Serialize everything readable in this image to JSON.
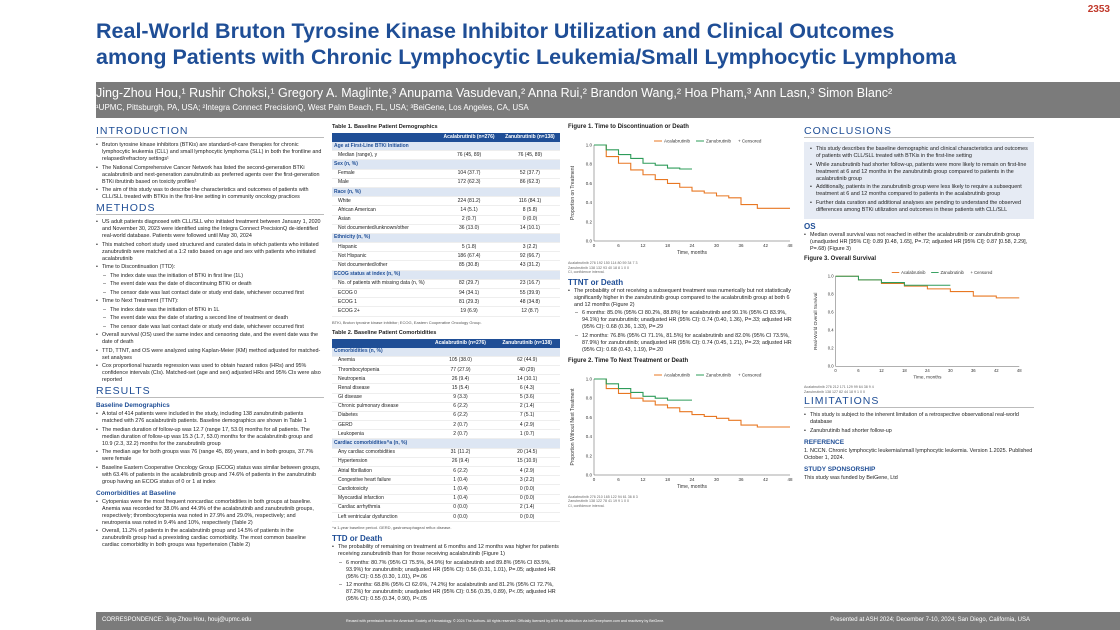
{
  "poster_number": "2353",
  "title_line1": "Real-World Bruton Tyrosine Kinase Inhibitor Utilization and Clinical Outcomes",
  "title_line2": "among Patients with Chronic Lymphocytic Leukemia/Small Lymphocytic Lymphoma",
  "authors": "Jing-Zhou Hou,¹ Rushir Choksi,¹ Gregory A. Maglinte,³ Anupama Vasudevan,² Anna Rui,² Brandon Wang,² Hoa Pham,³ Ann Lasn,³ Simon Blanc²",
  "affiliations": "¹UPMC, Pittsburgh, PA, USA; ²Integra Connect PrecisionQ, West Palm Beach, FL, USA; ³BeiGene, Los Angeles, CA, USA",
  "sections": {
    "introduction": "INTRODUCTION",
    "methods": "METHODS",
    "results": "RESULTS",
    "conclusions": "CONCLUSIONS",
    "limitations": "LIMITATIONS",
    "baseline_demographics": "Baseline Demographics",
    "comorbidities": "Comorbidities at Baseline",
    "ttd": "TTD or Death",
    "ttnt": "TTNT or Death",
    "os": "OS",
    "reference": "REFERENCE",
    "sponsorship": "STUDY SPONSORSHIP"
  },
  "intro_bullets": [
    "Bruton tyrosine kinase inhibitors (BTKis) are standard-of-care therapies for chronic lymphocytic leukemia (CLL) and small lymphocytic lymphoma (SLL) in both the frontline and relapsed/refractory settings¹",
    "The National Comprehensive Cancer Network has listed the second-generation BTKi acalabrutinib and next-generation zanubrutinib as preferred agents over the first-generation BTKi ibrutinib based on toxicity profiles¹",
    "The aim of this study was to describe the characteristics and outcomes of patients with CLL/SLL treated with BTKis in the first-line setting in community oncology practices"
  ],
  "methods_bullets": [
    {
      "t": "US adult patients diagnosed with CLL/SLL who initiated treatment between January 1, 2020 and November 30, 2023 were identified using the Integra Connect PrecisionQ de-identified real-world database. Patients were followed until May 30, 2024",
      "sub": false
    },
    {
      "t": "This matched cohort study used structured and curated data in which patients who initiated zanubrutinib were matched at a 1:2 ratio based on age and sex with patients who initiated acalabrutinib",
      "sub": false
    },
    {
      "t": "Time to Discontinuation (TTD):",
      "sub": false
    },
    {
      "t": "The index date was the initiation of BTKi in first line (1L)",
      "sub": true
    },
    {
      "t": "The event date was the date of discontinuing BTKi or death",
      "sub": true
    },
    {
      "t": "The censor date was last contact date or study end date, whichever occurred first",
      "sub": true
    },
    {
      "t": "Time to Next Treatment (TTNT):",
      "sub": false
    },
    {
      "t": "The index date was the initiation of BTKi in 1L",
      "sub": true
    },
    {
      "t": "The event date was the date of starting a second line of treatment or death",
      "sub": true
    },
    {
      "t": "The censor date was last contact date or study end date, whichever occurred first",
      "sub": true
    },
    {
      "t": "Overall survival (OS) used the same index and censoring date, and the event date was the date of death",
      "sub": false
    },
    {
      "t": "TTD, TTNT, and OS were analyzed using Kaplan-Meier (KM) method adjusted for matched-set analyses",
      "sub": false
    },
    {
      "t": "Cox proportional hazards regression was used to obtain hazard ratios (HRs) and 95% confidence intervals (CIs). Matched-set (age and sex) adjusted HRs and 95% CIs were also reported",
      "sub": false
    }
  ],
  "baseline_bullets": [
    "A total of 414 patients were included in the study, including 138 zanubrutinib patients matched with 276 acalabrutinib patients. Baseline demographics are shown in Table 1",
    "The median duration of follow-up was 12.7 (range 17, 53.0) months for all patients. The median duration of follow-up was 15.3 (1.7, 53.0) months for the acalabrutinib group and 10.9 (2.3, 32.2) months for the zanubrutinib group",
    "The median age for both groups was 76 (range 45, 89) years, and in both groups, 37.7% were female",
    "Baseline Eastern Cooperative Oncology Group (ECOG) status was similar between groups, with 63.4% of patients in the acalabrutinib group and 74.6% of patients in the zanubrutinib group having an ECOG status of 0 or 1 at index"
  ],
  "comorb_bullets": [
    "Cytopenias were the most frequent noncardiac comorbidities in both groups at baseline. Anemia was recorded for 38.0% and 44.9% of the acalabrutinib and zanubrutinib groups, respectively; thrombocytopenia was noted in 27.9% and 29.0%, respectively; and neutropenia was noted in 9.4% and 10%, respectively (Table 2)",
    "Overall, 11.2% of patients in the acalabrutinib group and 14.5% of patients in the zanubrutinib group had a preexisting cardiac comorbidity. The most common baseline cardiac comorbidity in both groups was hypertension (Table 2)"
  ],
  "table1": {
    "title": "Table 1. Baseline Patient Demographics",
    "headers": [
      "",
      "Acalabrutinib (n=276)",
      "Zanubrutinib (n=138)"
    ],
    "rows": [
      {
        "c": [
          "Age at First-Line BTKi Initiation",
          "",
          ""
        ],
        "k": "cat"
      },
      {
        "c": [
          "Median (range), y",
          "76 (45, 89)",
          "76 (45, 89)"
        ],
        "k": "ind"
      },
      {
        "c": [
          "Sex (n, %)",
          "",
          ""
        ],
        "k": "cat"
      },
      {
        "c": [
          "Female",
          "104 (37.7)",
          "52 (37.7)"
        ],
        "k": "ind"
      },
      {
        "c": [
          "Male",
          "172 (62.3)",
          "86 (62.3)"
        ],
        "k": "ind"
      },
      {
        "c": [
          "Race (n, %)",
          "",
          ""
        ],
        "k": "cat"
      },
      {
        "c": [
          "White",
          "224 (81.2)",
          "116 (84.1)"
        ],
        "k": "ind"
      },
      {
        "c": [
          "African American",
          "14 (5.1)",
          "8 (5.8)"
        ],
        "k": "ind"
      },
      {
        "c": [
          "Asian",
          "2 (0.7)",
          "0 (0.0)"
        ],
        "k": "ind"
      },
      {
        "c": [
          "Not documented/unknown/other",
          "36 (13.0)",
          "14 (10.1)"
        ],
        "k": "ind"
      },
      {
        "c": [
          "Ethnicity (n, %)",
          "",
          ""
        ],
        "k": "cat"
      },
      {
        "c": [
          "Hispanic",
          "5 (1.8)",
          "3 (2.2)"
        ],
        "k": "ind"
      },
      {
        "c": [
          "Not Hispanic",
          "186 (67.4)",
          "92 (66.7)"
        ],
        "k": "ind"
      },
      {
        "c": [
          "Not documented/other",
          "85 (30.8)",
          "43 (31.2)"
        ],
        "k": "ind"
      },
      {
        "c": [
          "ECOG status at index (n, %)",
          "",
          ""
        ],
        "k": "cat"
      },
      {
        "c": [
          "No. of patients with missing data (n, %)",
          "82 (29.7)",
          "23 (16.7)"
        ],
        "k": "ind"
      },
      {
        "c": [
          "ECOG 0",
          "94 (34.1)",
          "55 (39.9)"
        ],
        "k": "ind"
      },
      {
        "c": [
          "ECOG 1",
          "81 (29.3)",
          "48 (34.8)"
        ],
        "k": "ind"
      },
      {
        "c": [
          "ECOG 2+",
          "19 (6.9)",
          "12 (8.7)"
        ],
        "k": "ind"
      }
    ],
    "footnote": "BTKi, Bruton tyrosine kinase inhibitor; ECOG, Eastern Cooperative Oncology Group."
  },
  "table2": {
    "title": "Table 2. Baseline Patient Comorbidities",
    "headers": [
      "",
      "Acalabrutinib (n=276)",
      "Zanubrutinib (n=138)"
    ],
    "rows": [
      {
        "c": [
          "Comorbidities (n, %)",
          "",
          ""
        ],
        "k": "cat"
      },
      {
        "c": [
          "Anemia",
          "105 (38.0)",
          "62 (44.9)"
        ],
        "k": "ind"
      },
      {
        "c": [
          "Thrombocytopenia",
          "77 (27.9)",
          "40 (29)"
        ],
        "k": "ind"
      },
      {
        "c": [
          "Neutropenia",
          "26 (9.4)",
          "14 (10.1)"
        ],
        "k": "ind"
      },
      {
        "c": [
          "Renal disease",
          "15 (5.4)",
          "6 (4.3)"
        ],
        "k": "ind"
      },
      {
        "c": [
          "GI disease",
          "9 (3.3)",
          "5 (3.6)"
        ],
        "k": "ind"
      },
      {
        "c": [
          "Chronic pulmonary disease",
          "6 (2.2)",
          "2 (1.4)"
        ],
        "k": "ind"
      },
      {
        "c": [
          "Diabetes",
          "6 (2.2)",
          "7 (5.1)"
        ],
        "k": "ind"
      },
      {
        "c": [
          "GERD",
          "2 (0.7)",
          "4 (2.9)"
        ],
        "k": "ind"
      },
      {
        "c": [
          "Leukopenia",
          "2 (0.7)",
          "1 (0.7)"
        ],
        "k": "ind"
      },
      {
        "c": [
          "Cardiac comorbidities^a (n, %)",
          "",
          ""
        ],
        "k": "cat"
      },
      {
        "c": [
          "Any cardiac comorbidities",
          "31 (11.2)",
          "20 (14.5)"
        ],
        "k": "ind"
      },
      {
        "c": [
          "Hypertension",
          "26 (9.4)",
          "15 (10.9)"
        ],
        "k": "ind"
      },
      {
        "c": [
          "Atrial fibrillation",
          "6 (2.2)",
          "4 (2.9)"
        ],
        "k": "ind"
      },
      {
        "c": [
          "Congestive heart failure",
          "1 (0.4)",
          "3 (2.2)"
        ],
        "k": "ind"
      },
      {
        "c": [
          "Cardiotoxicity",
          "1 (0.4)",
          "0 (0.0)"
        ],
        "k": "ind"
      },
      {
        "c": [
          "Myocardial infarction",
          "1 (0.4)",
          "0 (0.0)"
        ],
        "k": "ind"
      },
      {
        "c": [
          "Cardiac arrhythmia",
          "0 (0.0)",
          "2 (1.4)"
        ],
        "k": "ind"
      },
      {
        "c": [
          "Left ventricular dysfunction",
          "0 (0.0)",
          "0 (0.0)"
        ],
        "k": "ind"
      }
    ],
    "footnote": "^a 1-year baseline period. GERD, gastroesophageal reflux disease."
  },
  "ttd_intro": "The probability of remaining on treatment at 6 months and 12 months was higher for patients receiving zanubrutinib than for those receiving acalabrutinib (Figure 1)",
  "ttd_sub": [
    "6 months: 80.7% (95% CI 75.5%, 84.9%) for acalabrutinib and 89.8% (95% CI 83.5%, 93.9%) for zanubrutinib; unadjusted HR (95% CI): 0.56 (0.31, 1.01), P=.05; adjusted HR (95% CI): 0.55 (0.30, 1.01), P=.06",
    "12 months: 68.8% (95% CI 62.6%, 74.2%) for acalabrutinib and 81.2% (95% CI 72.7%, 87.2%) for zanubrutinib; unadjusted HR (95% CI): 0.56 (0.35, 0.89), P<.05; adjusted HR (95% CI): 0.55 (0.34, 0.90), P<.05"
  ],
  "ttnt_intro": "The probability of not receiving a subsequent treatment was numerically but not statistically significantly higher in the zanubrutinib group compared to the acalabrutinib group at both 6 and 12 months (Figure 2)",
  "ttnt_sub": [
    "6 months: 85.0% (95% CI 80.2%, 88.8%) for acalabrutinib and 90.1% (95% CI 83.9%, 94.1%) for zanubrutinib; unadjusted HR (95% CI): 0.74 (0.40, 1.36), P=.33; adjusted HR (95% CI): 0.68 (0.36, 1.33), P=.29",
    "12 months: 76.8% (95% CI 71.1%, 81.5%) for acalabrutinib and 82.0% (95% CI 73.5%, 87.9%) for zanubrutinib; unadjusted HR (95% CI): 0.74 (0.45, 1.21), P=.23; adjusted HR (95% CI): 0.68 (0.43, 1.19), P=.20"
  ],
  "os_bullet": "Median overall survival was not reached in either the acalabrutinib or zanubrutinib group (unadjusted HR [95% CI]: 0.89 [0.48, 1.65], P=.72; adjusted HR [95% CI]: 0.87 [0.58, 2.29], P=.68) (Figure 3)",
  "conclusion_bullets": [
    "This study describes the baseline demographic and clinical characteristics and outcomes of patients with CLL/SLL treated with BTKis in the first-line setting",
    "While zanubrutinib had shorter follow-up, patients were more likely to remain on first-line treatment at 6 and 12 months in the zanubrutinib group compared to patients in the acalabrutinib group",
    "Additionally, patients in the zanubrutinib group were less likely to require a subsequent treatment at 6 and 12 months compared to patients in the acalabrutinib group",
    "Further data curation and additional analyses are pending to understand the observed differences among BTKi utilization and outcomes in these patients with CLL/SLL"
  ],
  "limitation_bullets": [
    "This study is subject to the inherent limitation of a retrospective observational real-world database",
    "Zanubrutinib had shorter follow-up"
  ],
  "reference_text": "1. NCCN. Chronic lymphocytic leukemia/small lymphocytic leukemia. Version 1.2025. Published October 1, 2024.",
  "sponsorship_text": "This study was funded by BeiGene, Ltd",
  "footer": {
    "left": "CORRESPONDENCE: Jing-Zhou Hou, houj@upmc.edu",
    "middle": "Reused with permission from the American Society of Hematology. © 2024 The Authors. All rights reserved. Officially licensed by ASH for distribution via beiGenepharm.com and reactivery by BeiGene.",
    "right": "Presented at ASH 2024; December 7-10, 2024; San Diego, California, USA"
  },
  "colors": {
    "acalabrutinib": "#e87722",
    "zanubrutinib": "#2e9c5a",
    "header": "#1f4e96"
  },
  "figures": [
    {
      "id": "fig1",
      "title": "Figure 1. Time to Discontinuation or Death",
      "type": "line",
      "ylabel": "Proportion on Treatment",
      "xlabel": "Time, months",
      "xticks": [
        0,
        6,
        12,
        18,
        24,
        30,
        36,
        42,
        48
      ],
      "yticks": [
        0.0,
        0.2,
        0.4,
        0.6,
        0.8,
        1.0
      ],
      "legend": [
        "Acalabrutinib",
        "Zanubrutinib",
        "+ Censored"
      ],
      "series": [
        {
          "name": "Acalabrutinib",
          "color": "#e87722",
          "x": [
            0,
            3,
            6,
            9,
            12,
            15,
            18,
            21,
            24,
            27,
            30,
            33,
            36,
            40,
            48
          ],
          "y": [
            1.0,
            0.88,
            0.81,
            0.74,
            0.69,
            0.64,
            0.6,
            0.56,
            0.52,
            0.5,
            0.47,
            0.45,
            0.38,
            0.34,
            0.34
          ]
        },
        {
          "name": "Zanubrutinib",
          "color": "#2e9c5a",
          "x": [
            0,
            3,
            6,
            9,
            12,
            15,
            18,
            21,
            24
          ],
          "y": [
            1.0,
            0.95,
            0.9,
            0.86,
            0.81,
            0.79,
            0.76,
            0.75,
            0.75
          ]
        }
      ],
      "risk_rows": [
        "Acalabrutinib  276  192  150  114  80  59  34  7  3",
        "Zanubrutinib  138  132  93  40  18  8  1  0  0"
      ],
      "caption": "CI, confidence interval."
    },
    {
      "id": "fig2",
      "title": "Figure 2. Time To Next Treatment or Death",
      "type": "line",
      "ylabel": "Proportion Without Next Treatment",
      "xlabel": "Time, months",
      "xticks": [
        0,
        6,
        12,
        18,
        24,
        30,
        36,
        42,
        48
      ],
      "yticks": [
        0.0,
        0.2,
        0.4,
        0.6,
        0.8,
        1.0
      ],
      "legend": [
        "Acalabrutinib",
        "Zanubrutinib",
        "+ Censored"
      ],
      "series": [
        {
          "name": "Acalabrutinib",
          "color": "#e87722",
          "x": [
            0,
            3,
            6,
            9,
            12,
            15,
            18,
            21,
            24,
            27,
            30,
            33,
            36,
            40,
            48
          ],
          "y": [
            1.0,
            0.9,
            0.85,
            0.8,
            0.77,
            0.73,
            0.7,
            0.66,
            0.63,
            0.61,
            0.59,
            0.57,
            0.52,
            0.5,
            0.5
          ]
        },
        {
          "name": "Zanubrutinib",
          "color": "#2e9c5a",
          "x": [
            0,
            3,
            6,
            9,
            12,
            15,
            18,
            21,
            24
          ],
          "y": [
            1.0,
            0.95,
            0.9,
            0.86,
            0.82,
            0.8,
            0.78,
            0.78,
            0.78
          ]
        }
      ],
      "risk_rows": [
        "Acalabrutinib  276  210  165  122  94  61  36  8  3",
        "Zanubrutinib  138  122  78  41  19  9  1  0  0"
      ],
      "caption": "CI, confidence interval."
    },
    {
      "id": "fig3",
      "title": "Figure 3. Overall Survival",
      "type": "line",
      "ylabel": "Real-World Overall Survival",
      "xlabel": "Time, months",
      "xticks": [
        0,
        6,
        12,
        18,
        24,
        30,
        36,
        42,
        48
      ],
      "yticks": [
        0.0,
        0.2,
        0.4,
        0.6,
        0.8,
        1.0
      ],
      "legend": [
        "Acalabrutinib",
        "Zanubrutinib",
        "+ Censored"
      ],
      "series": [
        {
          "name": "Acalabrutinib",
          "color": "#e87722",
          "x": [
            0,
            6,
            12,
            18,
            24,
            30,
            36,
            42,
            48
          ],
          "y": [
            1.0,
            0.96,
            0.92,
            0.89,
            0.86,
            0.83,
            0.78,
            0.76,
            0.76
          ]
        },
        {
          "name": "Zanubrutinib",
          "color": "#2e9c5a",
          "x": [
            0,
            6,
            12,
            18,
            24,
            30
          ],
          "y": [
            1.0,
            0.96,
            0.93,
            0.9,
            0.9,
            0.9
          ]
        }
      ],
      "risk_rows": [
        "Acalabrutinib  276  212  171  129  99  64  38  9  4",
        "Zanubrutinib  138  127  82  44  18  9  1  0  0"
      ],
      "caption": ""
    }
  ]
}
